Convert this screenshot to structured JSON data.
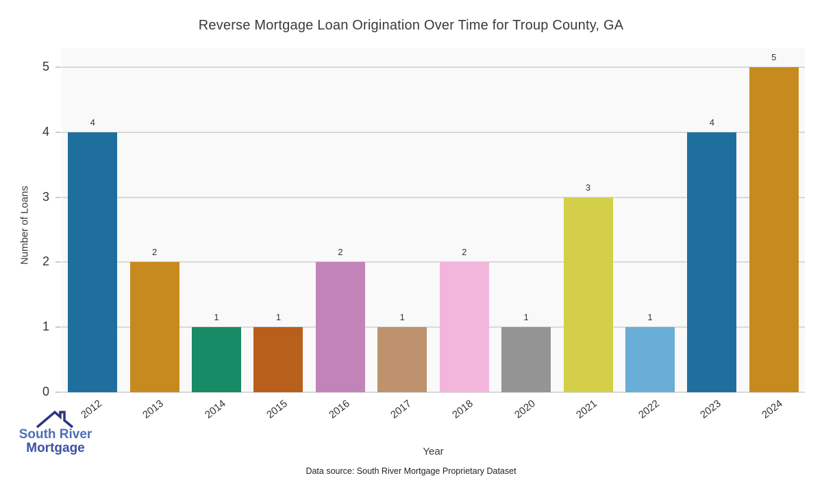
{
  "chart_data": {
    "type": "bar",
    "title": "Reverse Mortgage Loan Origination Over Time for Troup County, GA",
    "xlabel": "Year",
    "ylabel": "Number of Loans",
    "categories": [
      "2012",
      "2013",
      "2014",
      "2015",
      "2016",
      "2017",
      "2018",
      "2020",
      "2021",
      "2022",
      "2023",
      "2024"
    ],
    "values": [
      4,
      2,
      1,
      1,
      2,
      1,
      2,
      1,
      3,
      1,
      4,
      5
    ],
    "bar_colors": [
      "#1f6f9e",
      "#c68a1f",
      "#178a66",
      "#b85f1c",
      "#c283b8",
      "#bd926c",
      "#f2b5dc",
      "#949494",
      "#d4cf48",
      "#68aed6",
      "#1f6f9e",
      "#c68a1f"
    ],
    "yticks": [
      0,
      1,
      2,
      3,
      4,
      5
    ],
    "ylim": [
      0,
      5.3
    ],
    "grid": true,
    "legend": "none",
    "value_labels": true
  },
  "footer": {
    "data_source": "Data source: South River Mortgage Proprietary Dataset"
  },
  "logo": {
    "line1": "South River",
    "line2": "Mortgage"
  },
  "colors": {
    "plot_background": "#f9f9f9",
    "gridline": "#d9d9d9",
    "text": "#3a3a3a",
    "logo_blue_light": "#4d6fb5",
    "logo_blue_dark": "#3d50a5",
    "logo_roof_navy": "#2b3480"
  }
}
